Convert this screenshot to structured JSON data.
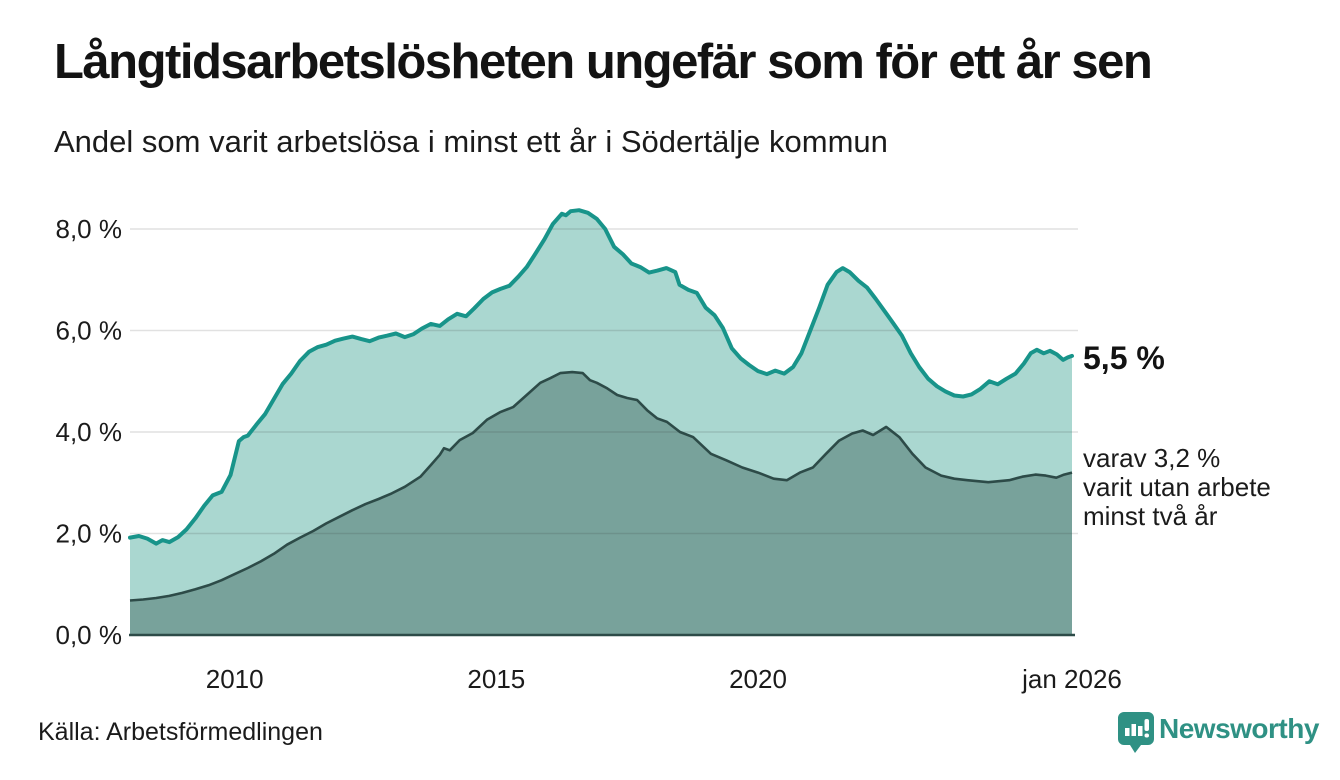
{
  "header": {
    "title": "Långtidsarbetslösheten ungefär som för ett år sen",
    "subtitle": "Andel som varit arbetslösa i minst ett år i Södertälje kommun"
  },
  "chart_data": {
    "type": "area",
    "title": "Långtidsarbetslösheten ungefär som för ett år sen",
    "subtitle": "Andel som varit arbetslösa i minst ett år i Södertälje kommun",
    "unit": "%",
    "grid": true,
    "y_axis": {
      "min": 0,
      "max": 8.6,
      "ticks": [
        {
          "value": 0,
          "label": "0,0 %"
        },
        {
          "value": 2,
          "label": "2,0 %"
        },
        {
          "value": 4,
          "label": "4,0 %"
        },
        {
          "value": 6,
          "label": "6,0 %"
        },
        {
          "value": 8,
          "label": "8,0 %"
        }
      ]
    },
    "x_axis": {
      "min_year": 2008,
      "max_year": 2026,
      "ticks": [
        {
          "year": 2010,
          "label": "2010"
        },
        {
          "year": 2015,
          "label": "2015"
        },
        {
          "year": 2020,
          "label": "2020"
        },
        {
          "year": 2026,
          "label": "jan 2026"
        }
      ]
    },
    "series": [
      {
        "id": "arbetslosa-minst-ett-ar",
        "line_color": "#18948a",
        "fill_color": "#aad7d0",
        "latest_value": 5.5,
        "points": [
          [
            2008.0,
            1.92
          ],
          [
            2008.17,
            1.95
          ],
          [
            2008.33,
            1.9
          ],
          [
            2008.5,
            1.8
          ],
          [
            2008.62,
            1.87
          ],
          [
            2008.75,
            1.83
          ],
          [
            2008.92,
            1.93
          ],
          [
            2009.08,
            2.08
          ],
          [
            2009.25,
            2.3
          ],
          [
            2009.42,
            2.55
          ],
          [
            2009.58,
            2.75
          ],
          [
            2009.75,
            2.82
          ],
          [
            2009.92,
            3.15
          ],
          [
            2010.08,
            3.82
          ],
          [
            2010.17,
            3.9
          ],
          [
            2010.25,
            3.93
          ],
          [
            2010.42,
            4.15
          ],
          [
            2010.58,
            4.35
          ],
          [
            2010.75,
            4.65
          ],
          [
            2010.92,
            4.95
          ],
          [
            2011.08,
            5.15
          ],
          [
            2011.25,
            5.4
          ],
          [
            2011.42,
            5.58
          ],
          [
            2011.58,
            5.67
          ],
          [
            2011.75,
            5.72
          ],
          [
            2011.92,
            5.8
          ],
          [
            2012.08,
            5.84
          ],
          [
            2012.25,
            5.88
          ],
          [
            2012.42,
            5.83
          ],
          [
            2012.58,
            5.79
          ],
          [
            2012.75,
            5.86
          ],
          [
            2012.92,
            5.9
          ],
          [
            2013.08,
            5.94
          ],
          [
            2013.25,
            5.87
          ],
          [
            2013.42,
            5.93
          ],
          [
            2013.58,
            6.04
          ],
          [
            2013.75,
            6.13
          ],
          [
            2013.92,
            6.09
          ],
          [
            2014.08,
            6.22
          ],
          [
            2014.25,
            6.33
          ],
          [
            2014.42,
            6.28
          ],
          [
            2014.58,
            6.44
          ],
          [
            2014.75,
            6.62
          ],
          [
            2014.92,
            6.75
          ],
          [
            2015.08,
            6.82
          ],
          [
            2015.25,
            6.88
          ],
          [
            2015.42,
            7.06
          ],
          [
            2015.58,
            7.25
          ],
          [
            2015.75,
            7.52
          ],
          [
            2015.92,
            7.8
          ],
          [
            2016.08,
            8.1
          ],
          [
            2016.25,
            8.3
          ],
          [
            2016.33,
            8.27
          ],
          [
            2016.42,
            8.35
          ],
          [
            2016.58,
            8.37
          ],
          [
            2016.75,
            8.32
          ],
          [
            2016.92,
            8.2
          ],
          [
            2017.08,
            8.0
          ],
          [
            2017.25,
            7.65
          ],
          [
            2017.42,
            7.5
          ],
          [
            2017.58,
            7.32
          ],
          [
            2017.75,
            7.25
          ],
          [
            2017.92,
            7.14
          ],
          [
            2018.08,
            7.18
          ],
          [
            2018.25,
            7.23
          ],
          [
            2018.42,
            7.15
          ],
          [
            2018.5,
            6.9
          ],
          [
            2018.67,
            6.8
          ],
          [
            2018.83,
            6.74
          ],
          [
            2019.0,
            6.45
          ],
          [
            2019.17,
            6.3
          ],
          [
            2019.33,
            6.05
          ],
          [
            2019.5,
            5.65
          ],
          [
            2019.67,
            5.45
          ],
          [
            2019.83,
            5.32
          ],
          [
            2020.0,
            5.2
          ],
          [
            2020.17,
            5.14
          ],
          [
            2020.33,
            5.21
          ],
          [
            2020.5,
            5.15
          ],
          [
            2020.67,
            5.28
          ],
          [
            2020.83,
            5.55
          ],
          [
            2021.0,
            6.0
          ],
          [
            2021.17,
            6.45
          ],
          [
            2021.33,
            6.9
          ],
          [
            2021.5,
            7.15
          ],
          [
            2021.62,
            7.23
          ],
          [
            2021.75,
            7.15
          ],
          [
            2021.92,
            6.98
          ],
          [
            2022.08,
            6.85
          ],
          [
            2022.25,
            6.62
          ],
          [
            2022.42,
            6.38
          ],
          [
            2022.58,
            6.15
          ],
          [
            2022.75,
            5.9
          ],
          [
            2022.92,
            5.55
          ],
          [
            2023.08,
            5.28
          ],
          [
            2023.25,
            5.05
          ],
          [
            2023.42,
            4.9
          ],
          [
            2023.58,
            4.8
          ],
          [
            2023.75,
            4.72
          ],
          [
            2023.92,
            4.7
          ],
          [
            2024.08,
            4.74
          ],
          [
            2024.25,
            4.85
          ],
          [
            2024.42,
            5.0
          ],
          [
            2024.58,
            4.94
          ],
          [
            2024.75,
            5.05
          ],
          [
            2024.92,
            5.15
          ],
          [
            2025.08,
            5.35
          ],
          [
            2025.21,
            5.55
          ],
          [
            2025.33,
            5.62
          ],
          [
            2025.46,
            5.55
          ],
          [
            2025.58,
            5.6
          ],
          [
            2025.71,
            5.53
          ],
          [
            2025.83,
            5.42
          ],
          [
            2025.92,
            5.47
          ],
          [
            2026.0,
            5.5
          ]
        ]
      },
      {
        "id": "utan-arbete-minst-tva-ar",
        "line_color": "#2d4b48",
        "fill_color": "#78a29b",
        "latest_value": 3.2,
        "points": [
          [
            2008.0,
            0.68
          ],
          [
            2008.25,
            0.7
          ],
          [
            2008.5,
            0.73
          ],
          [
            2008.75,
            0.77
          ],
          [
            2009.0,
            0.83
          ],
          [
            2009.25,
            0.9
          ],
          [
            2009.5,
            0.98
          ],
          [
            2009.75,
            1.08
          ],
          [
            2010.0,
            1.2
          ],
          [
            2010.25,
            1.32
          ],
          [
            2010.5,
            1.45
          ],
          [
            2010.75,
            1.6
          ],
          [
            2011.0,
            1.78
          ],
          [
            2011.25,
            1.92
          ],
          [
            2011.5,
            2.05
          ],
          [
            2011.75,
            2.2
          ],
          [
            2012.0,
            2.33
          ],
          [
            2012.25,
            2.46
          ],
          [
            2012.5,
            2.58
          ],
          [
            2012.75,
            2.68
          ],
          [
            2013.0,
            2.79
          ],
          [
            2013.25,
            2.92
          ],
          [
            2013.55,
            3.12
          ],
          [
            2013.75,
            3.35
          ],
          [
            2013.92,
            3.55
          ],
          [
            2014.0,
            3.68
          ],
          [
            2014.11,
            3.64
          ],
          [
            2014.3,
            3.84
          ],
          [
            2014.55,
            3.98
          ],
          [
            2014.82,
            4.24
          ],
          [
            2015.07,
            4.39
          ],
          [
            2015.32,
            4.49
          ],
          [
            2015.58,
            4.73
          ],
          [
            2015.84,
            4.97
          ],
          [
            2016.03,
            5.06
          ],
          [
            2016.22,
            5.16
          ],
          [
            2016.45,
            5.18
          ],
          [
            2016.65,
            5.16
          ],
          [
            2016.79,
            5.02
          ],
          [
            2016.92,
            4.97
          ],
          [
            2017.12,
            4.86
          ],
          [
            2017.31,
            4.73
          ],
          [
            2017.5,
            4.67
          ],
          [
            2017.69,
            4.63
          ],
          [
            2017.88,
            4.43
          ],
          [
            2018.07,
            4.27
          ],
          [
            2018.26,
            4.2
          ],
          [
            2018.51,
            4.0
          ],
          [
            2018.76,
            3.9
          ],
          [
            2019.1,
            3.57
          ],
          [
            2019.4,
            3.44
          ],
          [
            2019.7,
            3.3
          ],
          [
            2020.0,
            3.2
          ],
          [
            2020.3,
            3.08
          ],
          [
            2020.55,
            3.05
          ],
          [
            2020.8,
            3.2
          ],
          [
            2021.05,
            3.3
          ],
          [
            2021.3,
            3.57
          ],
          [
            2021.55,
            3.83
          ],
          [
            2021.8,
            3.97
          ],
          [
            2022.0,
            4.03
          ],
          [
            2022.2,
            3.94
          ],
          [
            2022.45,
            4.1
          ],
          [
            2022.7,
            3.9
          ],
          [
            2022.95,
            3.57
          ],
          [
            2023.2,
            3.3
          ],
          [
            2023.5,
            3.14
          ],
          [
            2023.75,
            3.08
          ],
          [
            2024.0,
            3.05
          ],
          [
            2024.4,
            3.01
          ],
          [
            2024.8,
            3.05
          ],
          [
            2025.05,
            3.12
          ],
          [
            2025.3,
            3.16
          ],
          [
            2025.5,
            3.14
          ],
          [
            2025.7,
            3.1
          ],
          [
            2025.85,
            3.16
          ],
          [
            2026.0,
            3.2
          ]
        ]
      }
    ]
  },
  "annotations": {
    "latest_total": "5,5 %",
    "breakdown_lines": [
      "varav 3,2 %",
      "varit utan arbete",
      "minst två år"
    ]
  },
  "footer": {
    "source": "Källa: Arbetsförmedlingen",
    "brand": "Newsworthy"
  },
  "colors": {
    "accent_teal": "#18948a",
    "light_fill": "#aad7d0",
    "dark_fill": "#78a29b",
    "dark_line": "#2d4b48",
    "grid": "#e3e3e3",
    "brand_teal": "#2f9184",
    "text": "#1b1b1b"
  }
}
